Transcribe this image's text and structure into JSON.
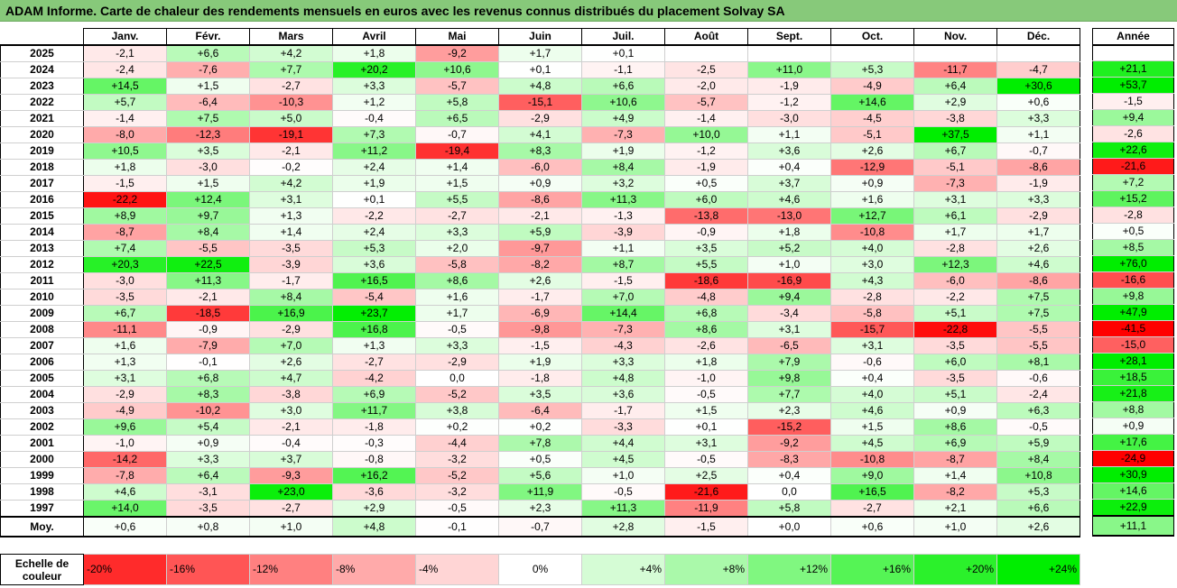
{
  "title": "ADAM Informe. Carte de chaleur des rendements mensuels en euros avec les revenus connus distribués du placement Solvay SA",
  "chart_data": {
    "type": "heatmap",
    "months": [
      "Janv.",
      "Févr.",
      "Mars",
      "Avril",
      "Mai",
      "Juin",
      "Juil.",
      "Août",
      "Sept.",
      "Oct.",
      "Nov.",
      "Déc."
    ],
    "annual_header": "Année",
    "rows": [
      {
        "year": "2025",
        "values": [
          "-2,1",
          "+6,6",
          "+4,2",
          "+1,8",
          "-9,2",
          "+1,7",
          "+0,1",
          "",
          "",
          "",
          "",
          ""
        ],
        "annual": ""
      },
      {
        "year": "2024",
        "values": [
          "-2,4",
          "-7,6",
          "+7,7",
          "+20,2",
          "+10,6",
          "+0,1",
          "-1,1",
          "-2,5",
          "+11,0",
          "+5,3",
          "-11,7",
          "-4,7"
        ],
        "annual": "+21,1"
      },
      {
        "year": "2023",
        "values": [
          "+14,5",
          "+1,5",
          "-2,7",
          "+3,3",
          "-5,7",
          "+4,8",
          "+6,6",
          "-2,0",
          "-1,9",
          "-4,9",
          "+6,4",
          "+30,6"
        ],
        "annual": "+53,7"
      },
      {
        "year": "2022",
        "values": [
          "+5,7",
          "-6,4",
          "-10,3",
          "+1,2",
          "+5,8",
          "-15,1",
          "+10,6",
          "-5,7",
          "-1,2",
          "+14,6",
          "+2,9",
          "+0,6"
        ],
        "annual": "-1,5"
      },
      {
        "year": "2021",
        "values": [
          "-1,4",
          "+7,5",
          "+5,0",
          "-0,4",
          "+6,5",
          "-2,9",
          "+4,9",
          "-1,4",
          "-3,0",
          "-4,5",
          "-3,8",
          "+3,3"
        ],
        "annual": "+9,4"
      },
      {
        "year": "2020",
        "values": [
          "-8,0",
          "-12,3",
          "-19,1",
          "+7,3",
          "-0,7",
          "+4,1",
          "-7,3",
          "+10,0",
          "+1,1",
          "-5,1",
          "+37,5",
          "+1,1"
        ],
        "annual": "-2,6"
      },
      {
        "year": "2019",
        "values": [
          "+10,5",
          "+3,5",
          "-2,1",
          "+11,2",
          "-19,4",
          "+8,3",
          "+1,9",
          "-1,2",
          "+3,6",
          "+2,6",
          "+6,7",
          "-0,7"
        ],
        "annual": "+22,6"
      },
      {
        "year": "2018",
        "values": [
          "+1,8",
          "-3,0",
          "-0,2",
          "+2,4",
          "+1,4",
          "-6,0",
          "+8,4",
          "-1,9",
          "+0,4",
          "-12,9",
          "-5,1",
          "-8,6"
        ],
        "annual": "-21,6"
      },
      {
        "year": "2017",
        "values": [
          "-1,5",
          "+1,5",
          "+4,2",
          "+1,9",
          "+1,5",
          "+0,9",
          "+3,2",
          "+0,5",
          "+3,7",
          "+0,9",
          "-7,3",
          "-1,9"
        ],
        "annual": "+7,2"
      },
      {
        "year": "2016",
        "values": [
          "-22,2",
          "+12,4",
          "+3,1",
          "+0,1",
          "+5,5",
          "-8,6",
          "+11,3",
          "+6,0",
          "+4,6",
          "+1,6",
          "+3,1",
          "+3,3"
        ],
        "annual": "+15,2"
      },
      {
        "year": "2015",
        "values": [
          "+8,9",
          "+9,7",
          "+1,3",
          "-2,2",
          "-2,7",
          "-2,1",
          "-1,3",
          "-13,8",
          "-13,0",
          "+12,7",
          "+6,1",
          "-2,9"
        ],
        "annual": "-2,8"
      },
      {
        "year": "2014",
        "values": [
          "-8,7",
          "+8,4",
          "+1,4",
          "+2,4",
          "+3,3",
          "+5,9",
          "-3,9",
          "-0,9",
          "+1,8",
          "-10,8",
          "+1,7",
          "+1,7"
        ],
        "annual": "+0,5"
      },
      {
        "year": "2013",
        "values": [
          "+7,4",
          "-5,5",
          "-3,5",
          "+5,3",
          "+2,0",
          "-9,7",
          "+1,1",
          "+3,5",
          "+5,2",
          "+4,0",
          "-2,8",
          "+2,6"
        ],
        "annual": "+8,5"
      },
      {
        "year": "2012",
        "values": [
          "+20,3",
          "+22,5",
          "-3,9",
          "+3,6",
          "-5,8",
          "-8,2",
          "+8,7",
          "+5,5",
          "+1,0",
          "+3,0",
          "+12,3",
          "+4,6"
        ],
        "annual": "+76,0"
      },
      {
        "year": "2011",
        "values": [
          "-3,0",
          "+11,3",
          "-1,7",
          "+16,5",
          "+8,6",
          "+2,6",
          "-1,5",
          "-18,6",
          "-16,9",
          "+4,3",
          "-6,0",
          "-8,6"
        ],
        "annual": "-16,6"
      },
      {
        "year": "2010",
        "values": [
          "-3,5",
          "-2,1",
          "+8,4",
          "-5,4",
          "+1,6",
          "-1,7",
          "+7,0",
          "-4,8",
          "+9,4",
          "-2,8",
          "-2,2",
          "+7,5"
        ],
        "annual": "+9,8"
      },
      {
        "year": "2009",
        "values": [
          "+6,7",
          "-18,5",
          "+16,9",
          "+23,7",
          "+1,7",
          "-6,9",
          "+14,4",
          "+6,8",
          "-3,4",
          "-5,8",
          "+5,1",
          "+7,5"
        ],
        "annual": "+47,9"
      },
      {
        "year": "2008",
        "values": [
          "-11,1",
          "-0,9",
          "-2,9",
          "+16,8",
          "-0,5",
          "-9,8",
          "-7,3",
          "+8,6",
          "+3,1",
          "-15,7",
          "-22,8",
          "-5,5"
        ],
        "annual": "-41,5"
      },
      {
        "year": "2007",
        "values": [
          "+1,6",
          "-7,9",
          "+7,0",
          "+1,3",
          "+3,3",
          "-1,5",
          "-4,3",
          "-2,6",
          "-6,5",
          "+3,1",
          "-3,5",
          "-5,5"
        ],
        "annual": "-15,0"
      },
      {
        "year": "2006",
        "values": [
          "+1,3",
          "-0,1",
          "+2,6",
          "-2,7",
          "-2,9",
          "+1,9",
          "+3,3",
          "+1,8",
          "+7,9",
          "-0,6",
          "+6,0",
          "+8,1"
        ],
        "annual": "+28,1"
      },
      {
        "year": "2005",
        "values": [
          "+3,1",
          "+6,8",
          "+4,7",
          "-4,2",
          "0,0",
          "-1,8",
          "+4,8",
          "-1,0",
          "+9,8",
          "+0,4",
          "-3,5",
          "-0,6"
        ],
        "annual": "+18,5"
      },
      {
        "year": "2004",
        "values": [
          "-2,9",
          "+8,3",
          "-3,8",
          "+6,9",
          "-5,2",
          "+3,5",
          "+3,6",
          "-0,5",
          "+7,7",
          "+4,0",
          "+5,1",
          "-2,4"
        ],
        "annual": "+21,8"
      },
      {
        "year": "2003",
        "values": [
          "-4,9",
          "-10,2",
          "+3,0",
          "+11,7",
          "+3,8",
          "-6,4",
          "-1,7",
          "+1,5",
          "+2,3",
          "+4,6",
          "+0,9",
          "+6,3"
        ],
        "annual": "+8,8"
      },
      {
        "year": "2002",
        "values": [
          "+9,6",
          "+5,4",
          "-2,1",
          "-1,8",
          "+0,2",
          "+0,2",
          "-3,3",
          "+0,1",
          "-15,2",
          "+1,5",
          "+8,6",
          "-0,5"
        ],
        "annual": "+0,9"
      },
      {
        "year": "2001",
        "values": [
          "-1,0",
          "+0,9",
          "-0,4",
          "-0,3",
          "-4,4",
          "+7,8",
          "+4,4",
          "+3,1",
          "-9,2",
          "+4,5",
          "+6,9",
          "+5,9"
        ],
        "annual": "+17,6"
      },
      {
        "year": "2000",
        "values": [
          "-14,2",
          "+3,3",
          "+3,7",
          "-0,8",
          "-3,2",
          "+0,5",
          "+4,5",
          "-0,5",
          "-8,3",
          "-10,8",
          "-8,7",
          "+8,4"
        ],
        "annual": "-24,9"
      },
      {
        "year": "1999",
        "values": [
          "-7,8",
          "+6,4",
          "-9,3",
          "+16,2",
          "-5,2",
          "+5,6",
          "+1,0",
          "+2,5",
          "+0,4",
          "+9,0",
          "+1,4",
          "+10,8"
        ],
        "annual": "+30,9"
      },
      {
        "year": "1998",
        "values": [
          "+4,6",
          "-3,1",
          "+23,0",
          "-3,6",
          "-3,2",
          "+11,9",
          "-0,5",
          "-21,6",
          "0,0",
          "+16,5",
          "-8,2",
          "+5,3"
        ],
        "annual": "+14,6"
      },
      {
        "year": "1997",
        "values": [
          "+14,0",
          "-3,5",
          "-2,7",
          "+2,9",
          "-0,5",
          "+2,3",
          "+11,3",
          "-11,9",
          "+5,8",
          "-2,7",
          "+2,1",
          "+6,6"
        ],
        "annual": "+22,9"
      }
    ],
    "average": {
      "label": "Moy.",
      "values": [
        "+0,6",
        "+0,8",
        "+1,0",
        "+4,8",
        "-0,1",
        "-0,7",
        "+2,8",
        "-1,5",
        "+0,0",
        "+0,6",
        "+1,0",
        "+2,6"
      ],
      "annual": "+11,1"
    },
    "scale": {
      "label": "Echelle de couleur",
      "steps": [
        {
          "text": "-20%",
          "value": -20
        },
        {
          "text": "-16%",
          "value": -16
        },
        {
          "text": "-12%",
          "value": -12
        },
        {
          "text": "-8%",
          "value": -8
        },
        {
          "text": "-4%",
          "value": -4
        },
        {
          "text": "0%",
          "value": 0
        },
        {
          "text": "+4%",
          "value": 4
        },
        {
          "text": "+8%",
          "value": 8
        },
        {
          "text": "+12%",
          "value": 12
        },
        {
          "text": "+16%",
          "value": 16
        },
        {
          "text": "+20%",
          "value": 20
        },
        {
          "text": "+24%",
          "value": 24
        }
      ]
    },
    "colors": {
      "negative": "#ff0000",
      "neutral": "#ffffff",
      "positive": "#00ee00"
    },
    "color_domain": [
      -24,
      24
    ]
  }
}
